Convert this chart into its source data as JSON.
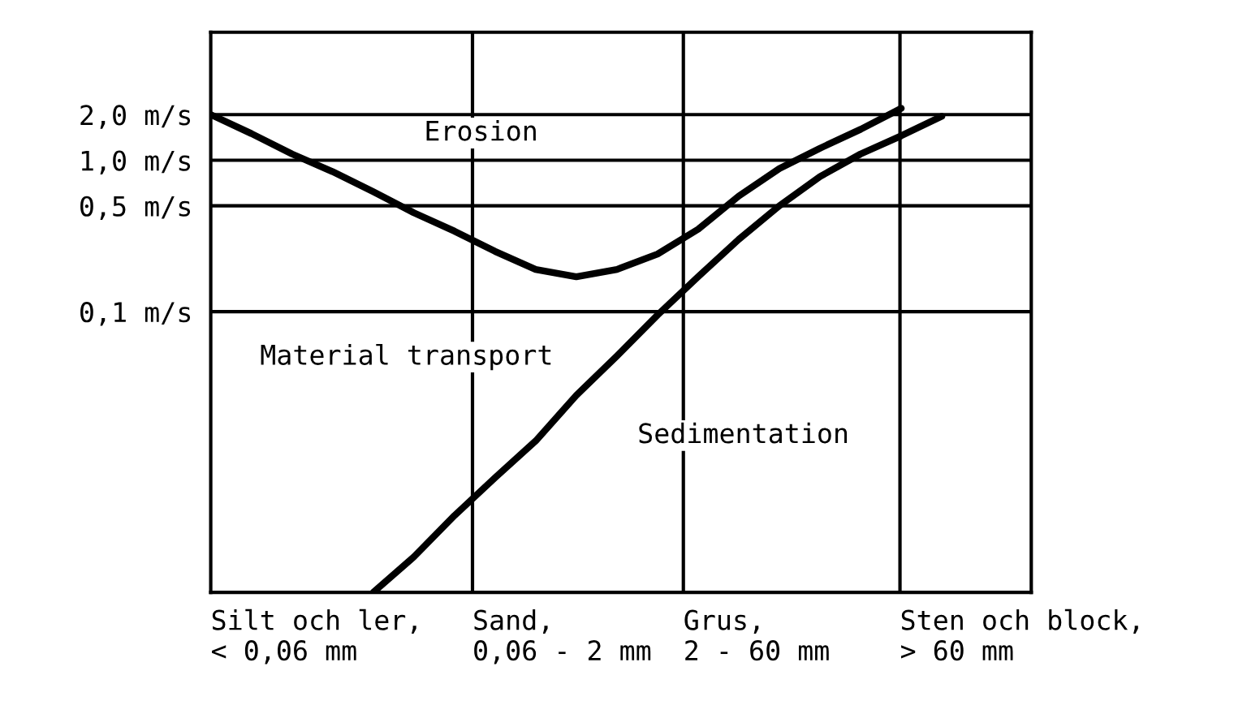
{
  "chart_data": {
    "type": "line",
    "categories": [
      null,
      null,
      null,
      null,
      null,
      null,
      null,
      null,
      null,
      null,
      null,
      null,
      null,
      null,
      null,
      null,
      null,
      null,
      null,
      null,
      null
    ],
    "log": "y",
    "ylim": [
      0.0014,
      7
    ],
    "yticks": [
      {
        "value": 0.1,
        "label": "0,1 m/s"
      },
      {
        "value": 0.5,
        "label": "0,5 m/s"
      },
      {
        "value": 1,
        "label": "1,0 m/s"
      },
      {
        "value": 2,
        "label": "2,0 m/s"
      }
    ],
    "grid": "y",
    "series": [
      {
        "color": "#000000",
        "values": [
          2.0,
          1.5,
          1.1,
          0.84,
          0.62,
          0.45,
          0.34,
          0.25,
          0.19,
          0.17,
          0.19,
          0.24,
          0.35,
          0.58,
          0.88,
          1.2,
          1.6,
          2.2,
          null,
          null,
          null
        ]
      },
      {
        "color": "#000000",
        "values": [
          null,
          null,
          null,
          null,
          0.0014,
          0.0024,
          0.0045,
          0.008,
          0.014,
          0.028,
          0.051,
          0.095,
          0.17,
          0.3,
          0.5,
          0.78,
          1.1,
          1.45,
          1.95,
          null,
          null
        ]
      }
    ],
    "annotations": [
      "Erosion",
      "Material transport",
      "Sedimentation",
      "Silt och ler,\n< 0,06 mm",
      "Sand,\n0,06 - 2 mm",
      "Grus,\n2 - 60 mm",
      "Sten och block,\n> 60 mm"
    ]
  }
}
